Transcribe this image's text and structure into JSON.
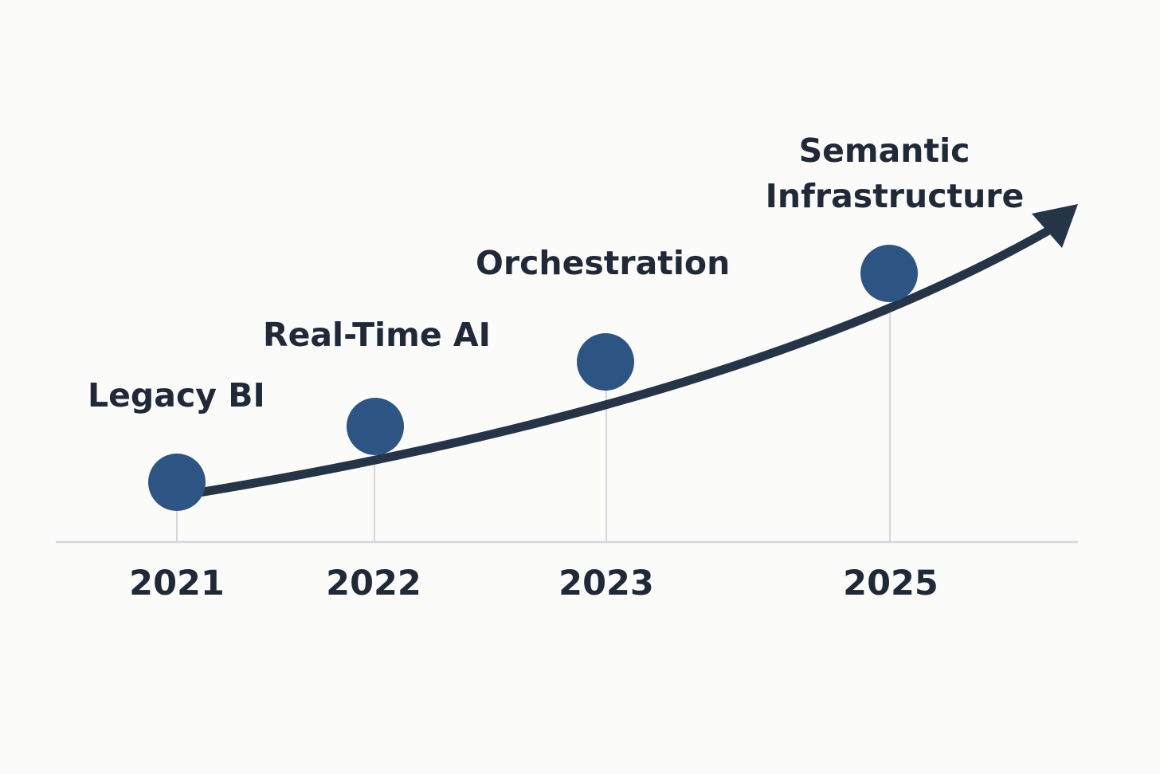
{
  "timeline": {
    "milestones": [
      {
        "year": "2021",
        "label_lines": [
          "Legacy BI"
        ]
      },
      {
        "year": "2022",
        "label_lines": [
          "Real-Time AI"
        ]
      },
      {
        "year": "2023",
        "label_lines": [
          "Orchestration"
        ]
      },
      {
        "year": "2025",
        "label_lines": [
          "Semantic",
          "Infrastructure"
        ]
      }
    ]
  },
  "colors": {
    "background": "#fbfbfa",
    "curve": "#253447",
    "node": "#2d5584",
    "text": "#1f2937",
    "axis": "#d4d6dc",
    "stem": "#d4d6dc"
  }
}
